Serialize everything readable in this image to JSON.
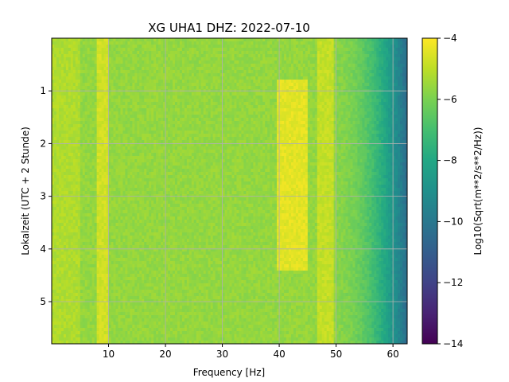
{
  "chart_data": {
    "type": "heatmap",
    "title": "XG UHA1  DHZ: 2022-07-10",
    "xlabel": "Frequency [Hz]",
    "ylabel": "Lokalzeit (UTC + 2 Stunde)",
    "xlim": [
      0,
      62.5
    ],
    "ylim": [
      5.8,
      0
    ],
    "x_ticks": [
      10,
      20,
      30,
      40,
      50,
      60
    ],
    "x_tick_labels": [
      "10",
      "20",
      "30",
      "40",
      "50",
      "60"
    ],
    "y_ticks": [
      1,
      2,
      3,
      4,
      5
    ],
    "y_tick_labels": [
      "1",
      "2",
      "3",
      "4",
      "5"
    ],
    "grid": true,
    "colormap": "viridis",
    "colorbar": {
      "label": "Log10(Sqrt(m**2/s**2/Hz))",
      "range": [
        -14,
        -4
      ],
      "ticks": [
        -4,
        -6,
        -8,
        -10,
        -12,
        -14
      ],
      "tick_labels": [
        "−4",
        "−6",
        "−8",
        "−10",
        "−12",
        "−14"
      ]
    },
    "background_level": -5.6,
    "features": [
      {
        "kind": "band",
        "freq_start": 8.0,
        "freq_end": 10.2,
        "time_start": 0.0,
        "time_end": 5.8,
        "level": -4.7
      },
      {
        "kind": "band",
        "freq_start": 39.5,
        "freq_end": 45.0,
        "time_start": 0.8,
        "time_end": 4.4,
        "level": -4.4
      },
      {
        "kind": "band",
        "freq_start": 46.5,
        "freq_end": 49.5,
        "time_start": 0.0,
        "time_end": 5.8,
        "level": -4.9
      },
      {
        "kind": "band",
        "freq_start": 0.0,
        "freq_end": 5.0,
        "time_start": 0.0,
        "time_end": 5.8,
        "level": -5.2
      }
    ],
    "rolloff": {
      "freq_start": 50,
      "freq_end": 62.5,
      "level_start": -5.8,
      "level_end": -10.5
    }
  }
}
